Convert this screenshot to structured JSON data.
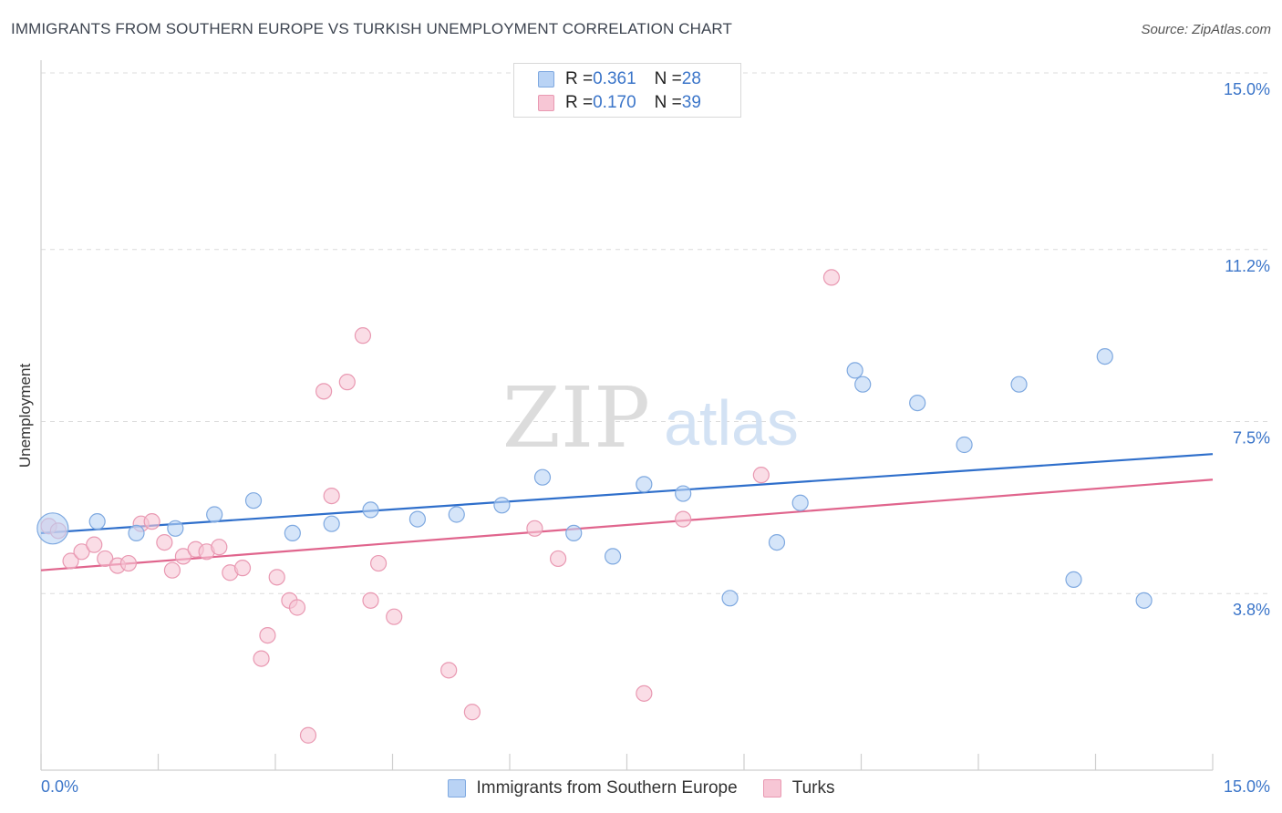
{
  "header": {
    "title": "IMMIGRANTS FROM SOUTHERN EUROPE VS TURKISH UNEMPLOYMENT CORRELATION CHART",
    "source": "Source: ZipAtlas.com"
  },
  "watermark": {
    "zip": "ZIP",
    "atlas": "atlas"
  },
  "legend": {
    "series1": {
      "r_label": "R = ",
      "r_value": "0.361",
      "n_label": "N = ",
      "n_value": "28"
    },
    "series2": {
      "r_label": "R = ",
      "r_value": "0.170",
      "n_label": "N = ",
      "n_value": "39"
    }
  },
  "colors": {
    "blue_fill": "#b9d3f5",
    "blue_stroke": "#7fa9e0",
    "blue_line": "#2f6fcb",
    "pink_fill": "#f7c6d5",
    "pink_stroke": "#e999b2",
    "pink_line": "#e0658d",
    "axis_text": "#3b75c9",
    "grid": "#dcdcdc"
  },
  "chart_data": {
    "type": "scatter",
    "title": "IMMIGRANTS FROM SOUTHERN EUROPE VS TURKISH UNEMPLOYMENT CORRELATION CHART",
    "xlabel": "",
    "ylabel": "Unemployment",
    "xlim": [
      0,
      15
    ],
    "ylim": [
      0,
      15
    ],
    "x_tick_labels": [
      "0.0%",
      "15.0%"
    ],
    "y_ticks": [
      3.8,
      7.5,
      11.2,
      15.0
    ],
    "y_tick_labels": [
      "3.8%",
      "7.5%",
      "11.2%",
      "15.0%"
    ],
    "grid": true,
    "series": [
      {
        "name": "Immigrants from Southern Europe",
        "color": "#b9d3f5",
        "trend": {
          "x": [
            0,
            15
          ],
          "y": [
            5.1,
            6.8
          ]
        },
        "points": [
          {
            "x": 0.15,
            "y": 5.2,
            "big": true
          },
          {
            "x": 0.72,
            "y": 5.35
          },
          {
            "x": 1.22,
            "y": 5.1
          },
          {
            "x": 1.72,
            "y": 5.2
          },
          {
            "x": 2.22,
            "y": 5.5
          },
          {
            "x": 2.72,
            "y": 5.8
          },
          {
            "x": 3.22,
            "y": 5.1
          },
          {
            "x": 3.72,
            "y": 5.3
          },
          {
            "x": 4.22,
            "y": 5.6
          },
          {
            "x": 4.82,
            "y": 5.4
          },
          {
            "x": 5.32,
            "y": 5.5
          },
          {
            "x": 5.9,
            "y": 5.7
          },
          {
            "x": 6.42,
            "y": 6.3
          },
          {
            "x": 6.82,
            "y": 5.1
          },
          {
            "x": 7.32,
            "y": 4.6
          },
          {
            "x": 7.72,
            "y": 6.15
          },
          {
            "x": 8.22,
            "y": 5.95
          },
          {
            "x": 8.82,
            "y": 3.7
          },
          {
            "x": 9.42,
            "y": 4.9
          },
          {
            "x": 9.72,
            "y": 5.75
          },
          {
            "x": 10.42,
            "y": 8.6
          },
          {
            "x": 10.52,
            "y": 8.3
          },
          {
            "x": 11.22,
            "y": 7.9
          },
          {
            "x": 11.82,
            "y": 7.0
          },
          {
            "x": 12.52,
            "y": 8.3
          },
          {
            "x": 13.22,
            "y": 4.1
          },
          {
            "x": 13.62,
            "y": 8.9
          },
          {
            "x": 14.12,
            "y": 3.65
          }
        ]
      },
      {
        "name": "Turks",
        "color": "#f7c6d5",
        "trend": {
          "x": [
            0,
            15
          ],
          "y": [
            4.3,
            6.25
          ]
        },
        "points": [
          {
            "x": 0.1,
            "y": 5.25
          },
          {
            "x": 0.22,
            "y": 5.15
          },
          {
            "x": 0.38,
            "y": 4.5
          },
          {
            "x": 0.52,
            "y": 4.7
          },
          {
            "x": 0.68,
            "y": 4.85
          },
          {
            "x": 0.82,
            "y": 4.55
          },
          {
            "x": 0.98,
            "y": 4.4
          },
          {
            "x": 1.12,
            "y": 4.45
          },
          {
            "x": 1.28,
            "y": 5.3
          },
          {
            "x": 1.42,
            "y": 5.35
          },
          {
            "x": 1.58,
            "y": 4.9
          },
          {
            "x": 1.68,
            "y": 4.3
          },
          {
            "x": 1.82,
            "y": 4.6
          },
          {
            "x": 1.98,
            "y": 4.75
          },
          {
            "x": 2.12,
            "y": 4.7
          },
          {
            "x": 2.28,
            "y": 4.8
          },
          {
            "x": 2.42,
            "y": 4.25
          },
          {
            "x": 2.58,
            "y": 4.35
          },
          {
            "x": 2.82,
            "y": 2.4
          },
          {
            "x": 2.9,
            "y": 2.9
          },
          {
            "x": 3.02,
            "y": 4.15
          },
          {
            "x": 3.18,
            "y": 3.65
          },
          {
            "x": 3.28,
            "y": 3.5
          },
          {
            "x": 3.42,
            "y": 0.75
          },
          {
            "x": 3.62,
            "y": 8.15
          },
          {
            "x": 3.72,
            "y": 5.9
          },
          {
            "x": 3.92,
            "y": 8.35
          },
          {
            "x": 4.12,
            "y": 9.35
          },
          {
            "x": 4.22,
            "y": 3.65
          },
          {
            "x": 4.32,
            "y": 4.45
          },
          {
            "x": 4.52,
            "y": 3.3
          },
          {
            "x": 5.22,
            "y": 2.15
          },
          {
            "x": 5.52,
            "y": 1.25
          },
          {
            "x": 6.32,
            "y": 5.2
          },
          {
            "x": 6.62,
            "y": 4.55
          },
          {
            "x": 7.72,
            "y": 1.65
          },
          {
            "x": 8.22,
            "y": 5.4
          },
          {
            "x": 9.22,
            "y": 6.35
          },
          {
            "x": 10.12,
            "y": 10.6
          }
        ]
      }
    ]
  }
}
